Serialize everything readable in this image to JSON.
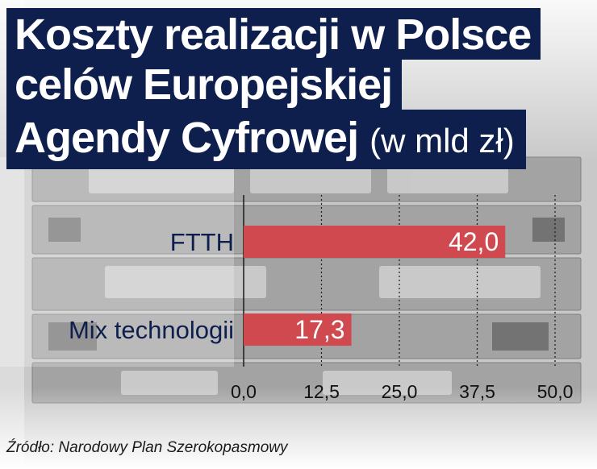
{
  "title": {
    "line1": "Koszty realizacji w Polsce",
    "line2": "celów Europejskiej",
    "line3": "Agendy Cyfrowej",
    "unit": "(w mld zł)"
  },
  "source": "Źródło: Narodowy Plan Szerokopasmowy",
  "colors": {
    "bar": "#d0494f",
    "title_bg": "#0e1f4d",
    "category_label": "#0e1f4d",
    "value_label": "#ffffff"
  },
  "chart_data": {
    "type": "bar",
    "orientation": "horizontal",
    "categories": [
      "FTTH",
      "Mix technologii"
    ],
    "values": [
      42.0,
      17.3
    ],
    "value_labels": [
      "42,0",
      "17,3"
    ],
    "xlim": [
      0,
      50
    ],
    "xticks": [
      "0,0",
      "12,5",
      "25,0",
      "37,5",
      "50,0"
    ],
    "grid": "vertical dotted",
    "title": "Koszty realizacji w Polsce celów Europejskiej Agendy Cyfrowej (w mld zł)"
  }
}
